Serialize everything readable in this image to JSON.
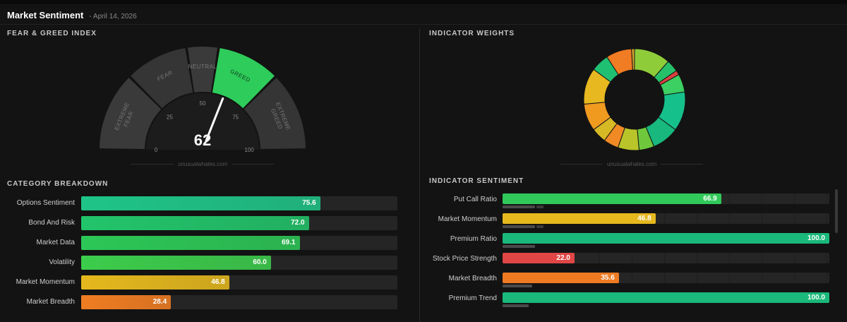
{
  "header": {
    "title": "Market Sentiment",
    "date": "- April 14, 2026"
  },
  "fear_greed": {
    "section_title": "FEAR & GREED INDEX",
    "value": 62,
    "value_text": "62",
    "watermark": "unusualwhales.com",
    "ticks": [
      "0",
      "25",
      "50",
      "75",
      "100"
    ],
    "zones": [
      {
        "lines": [
          "EXTREME",
          "FEAR"
        ],
        "from": 0,
        "to": 25,
        "color": "#3a3a3a"
      },
      {
        "lines": [
          "FEAR"
        ],
        "from": 25,
        "to": 45,
        "color": "#353535"
      },
      {
        "lines": [
          "NEUTRAL"
        ],
        "from": 45,
        "to": 55,
        "color": "#3a3a3a"
      },
      {
        "lines": [
          "GREED"
        ],
        "from": 55,
        "to": 75,
        "color": "#2ecc5a"
      },
      {
        "lines": [
          "EXTREME",
          "GREED"
        ],
        "from": 75,
        "to": 100,
        "color": "#353535"
      }
    ]
  },
  "indicator_weights": {
    "section_title": "INDICATOR WEIGHTS",
    "watermark": "unusualwhales.com",
    "segments": [
      {
        "value": 12,
        "color": "#8fcc3a"
      },
      {
        "value": 4,
        "color": "#27c06a"
      },
      {
        "value": 1.5,
        "color": "#d94040"
      },
      {
        "value": 6,
        "color": "#3ccf62"
      },
      {
        "value": 13,
        "color": "#16c08a"
      },
      {
        "value": 9,
        "color": "#18b87e"
      },
      {
        "value": 5,
        "color": "#6fc83c"
      },
      {
        "value": 7,
        "color": "#b9c42a"
      },
      {
        "value": 5,
        "color": "#f08a24"
      },
      {
        "value": 5,
        "color": "#d7b825"
      },
      {
        "value": 9,
        "color": "#f09a20"
      },
      {
        "value": 12,
        "color": "#e8b820"
      },
      {
        "value": 6,
        "color": "#20c072"
      },
      {
        "value": 8.5,
        "color": "#f07c24"
      },
      {
        "value": 1,
        "color": "#d0a030"
      }
    ]
  },
  "category_breakdown": {
    "section_title": "CATEGORY BREAKDOWN",
    "rows": [
      {
        "label": "Options Sentiment",
        "value": 75.6,
        "value_text": "75.6",
        "color": "#1fc488"
      },
      {
        "label": "Bond And Risk",
        "value": 72.0,
        "value_text": "72.0",
        "color": "#22c46a"
      },
      {
        "label": "Market Data",
        "value": 69.1,
        "value_text": "69.1",
        "color": "#2cc756"
      },
      {
        "label": "Volatility",
        "value": 60.0,
        "value_text": "60.0",
        "color": "#3ccd4c"
      },
      {
        "label": "Market Momentum",
        "value": 46.8,
        "value_text": "46.8",
        "color": "#e5b81d"
      },
      {
        "label": "Market Breadth",
        "value": 28.4,
        "value_text": "28.4",
        "color": "#f07d22"
      }
    ]
  },
  "indicator_sentiment": {
    "section_title": "INDICATOR SENTIMENT",
    "rows": [
      {
        "label": "Put Call Ratio",
        "value": 66.9,
        "value_text": "66.9",
        "color": "#30c95a",
        "sub_a": 10,
        "sub_b": 2
      },
      {
        "label": "Market Momentum",
        "value": 46.8,
        "value_text": "46.8",
        "color": "#e6b81e",
        "sub_a": 10,
        "sub_b": 2
      },
      {
        "label": "Premium Ratio",
        "value": 100.0,
        "value_text": "100.0",
        "color": "#1ab87a",
        "sub_a": 10,
        "sub_b": 0
      },
      {
        "label": "Stock Price Strength",
        "value": 22.0,
        "value_text": "22.0",
        "color": "#e04646",
        "sub_a": 0,
        "sub_b": 0
      },
      {
        "label": "Market Breadth",
        "value": 35.6,
        "value_text": "35.6",
        "color": "#ef7a22",
        "sub_a": 9,
        "sub_b": 0
      },
      {
        "label": "Premium Trend",
        "value": 100.0,
        "value_text": "100.0",
        "color": "#1ab87a",
        "sub_a": 8,
        "sub_b": 0
      }
    ]
  }
}
